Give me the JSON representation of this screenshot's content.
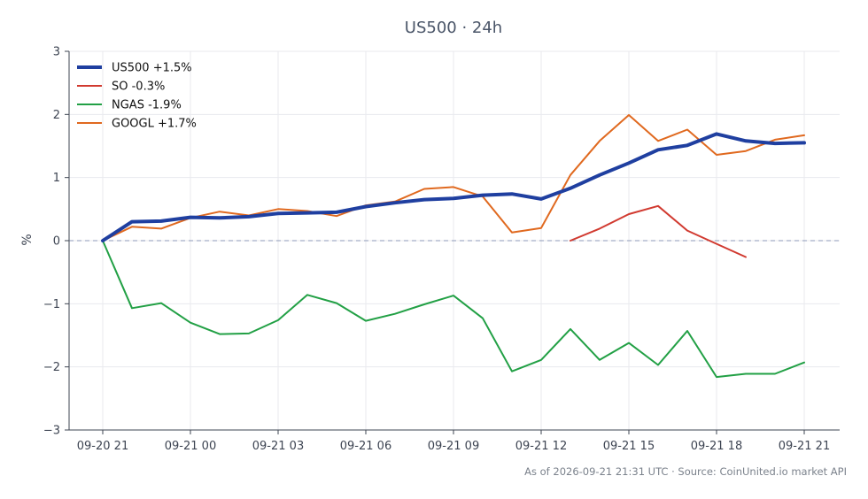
{
  "chart_data": {
    "type": "line",
    "title": "US500 · 24h",
    "ylabel": "%",
    "xlabel": "",
    "ylim": [
      -3,
      3
    ],
    "yticks": [
      3,
      2,
      1,
      0,
      -1,
      -2,
      -3
    ],
    "ytick_labels": [
      "3",
      "2",
      "1",
      "0",
      "−1",
      "−2",
      "−3"
    ],
    "x": [
      "09-20 21",
      "09-20 22",
      "09-20 23",
      "09-21 00",
      "09-21 01",
      "09-21 02",
      "09-21 03",
      "09-21 04",
      "09-21 05",
      "09-21 06",
      "09-21 07",
      "09-21 08",
      "09-21 09",
      "09-21 10",
      "09-21 11",
      "09-21 12",
      "09-21 13",
      "09-21 14",
      "09-21 15",
      "09-21 16",
      "09-21 17",
      "09-21 18",
      "09-21 19",
      "09-21 20",
      "09-21 21"
    ],
    "xtick_labels": [
      "09-20 21",
      "09-21 00",
      "09-21 03",
      "09-21 06",
      "09-21 09",
      "09-21 12",
      "09-21 15",
      "09-21 18",
      "09-21 21"
    ],
    "grid": true,
    "zero_line": true,
    "legend_position": "top-left",
    "series": [
      {
        "name": "US500 +1.5%",
        "color": "#1f3fa0",
        "width": "thick",
        "values": [
          0.0,
          0.3,
          0.31,
          0.37,
          0.36,
          0.38,
          0.43,
          0.44,
          0.45,
          0.54,
          0.6,
          0.65,
          0.67,
          0.72,
          0.74,
          0.66,
          0.83,
          1.04,
          1.23,
          1.44,
          1.51,
          1.69,
          1.58,
          1.54,
          1.55
        ]
      },
      {
        "name": "SO -0.3%",
        "color": "#d13a30",
        "width": "normal",
        "values": [
          null,
          null,
          null,
          null,
          null,
          null,
          null,
          null,
          null,
          null,
          null,
          null,
          null,
          null,
          null,
          null,
          0.0,
          0.19,
          0.42,
          0.55,
          0.16,
          -0.05,
          -0.26,
          null,
          null
        ]
      },
      {
        "name": "NGAS -1.9%",
        "color": "#22a045",
        "width": "normal",
        "values": [
          0.0,
          -1.07,
          -0.99,
          -1.3,
          -1.48,
          -1.47,
          -1.26,
          -0.86,
          -0.99,
          -1.27,
          -1.16,
          -1.01,
          -0.87,
          -1.23,
          -2.07,
          -1.89,
          -1.4,
          -1.89,
          -1.62,
          -1.97,
          -1.43,
          -2.16,
          -2.11,
          -2.11,
          -1.93
        ]
      },
      {
        "name": "GOOGL +1.7%",
        "color": "#e0691f",
        "width": "normal",
        "values": [
          0.0,
          0.22,
          0.19,
          0.36,
          0.46,
          0.4,
          0.5,
          0.47,
          0.39,
          0.56,
          0.62,
          0.82,
          0.85,
          0.7,
          0.13,
          0.2,
          1.04,
          1.58,
          1.99,
          1.58,
          1.76,
          1.36,
          1.42,
          1.6,
          1.67
        ]
      }
    ]
  },
  "footer": "As of 2026-09-21 21:31 UTC · Source: CoinUnited.io market API"
}
